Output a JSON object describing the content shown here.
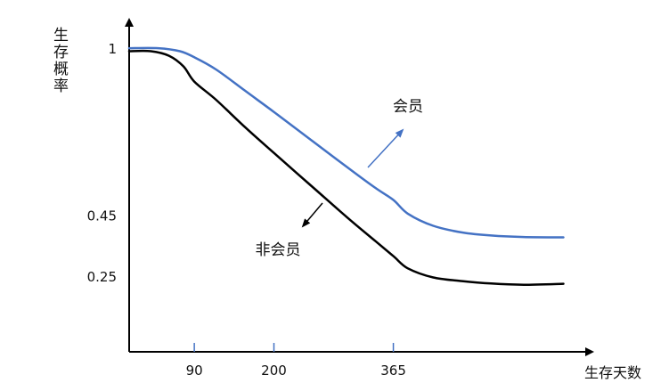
{
  "chart_data": {
    "type": "line",
    "title": "",
    "ylabel": "生存概率",
    "xlabel": "生存天数",
    "x_ticks": [
      {
        "value": 90,
        "label": "90"
      },
      {
        "value": 200,
        "label": "200"
      },
      {
        "value": 365,
        "label": "365"
      }
    ],
    "y_ticks": [
      {
        "value": 1,
        "label": "1"
      },
      {
        "value": 0.45,
        "label": "0.45"
      },
      {
        "value": 0.25,
        "label": "0.25"
      }
    ],
    "xlim": [
      0,
      640
    ],
    "ylim": [
      0,
      1.1
    ],
    "grid": false,
    "series": [
      {
        "name": "会员",
        "color": "#4472c4",
        "points": [
          [
            0,
            1.0
          ],
          [
            40,
            1.0
          ],
          [
            70,
            0.99
          ],
          [
            90,
            0.97
          ],
          [
            120,
            0.93
          ],
          [
            160,
            0.86
          ],
          [
            200,
            0.79
          ],
          [
            250,
            0.7
          ],
          [
            300,
            0.61
          ],
          [
            340,
            0.54
          ],
          [
            365,
            0.5
          ],
          [
            385,
            0.455
          ],
          [
            420,
            0.415
          ],
          [
            460,
            0.393
          ],
          [
            500,
            0.383
          ],
          [
            545,
            0.378
          ],
          [
            600,
            0.377
          ]
        ]
      },
      {
        "name": "非会员",
        "color": "#000000",
        "points": [
          [
            0,
            0.99
          ],
          [
            30,
            0.99
          ],
          [
            55,
            0.975
          ],
          [
            75,
            0.94
          ],
          [
            90,
            0.89
          ],
          [
            120,
            0.83
          ],
          [
            160,
            0.74
          ],
          [
            200,
            0.655
          ],
          [
            250,
            0.55
          ],
          [
            300,
            0.445
          ],
          [
            340,
            0.365
          ],
          [
            365,
            0.315
          ],
          [
            385,
            0.275
          ],
          [
            420,
            0.245
          ],
          [
            460,
            0.233
          ],
          [
            500,
            0.225
          ],
          [
            545,
            0.221
          ],
          [
            600,
            0.224
          ]
        ]
      }
    ],
    "annotations": [
      {
        "text": "会员",
        "series": "会员"
      },
      {
        "text": "非会员",
        "series": "非会员"
      }
    ]
  }
}
